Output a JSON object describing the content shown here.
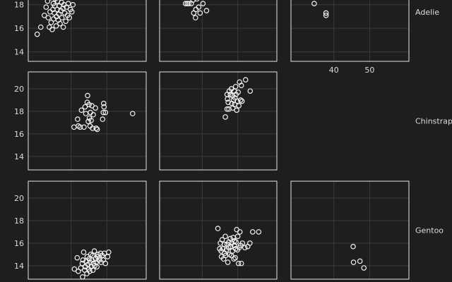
{
  "chart_data": {
    "type": "scatter",
    "layout": "faceted grid",
    "row_facet_labels": [
      "Adelie",
      "Chinstrap",
      "Gentoo"
    ],
    "x_tick_labels": [
      "40",
      "50"
    ],
    "x_ticks": [
      40,
      50
    ],
    "xlim": [
      28,
      61
    ],
    "y_ticks": [
      14,
      16,
      18,
      20
    ],
    "ylim_rows": [
      [
        13.2,
        19.0
      ],
      [
        12.8,
        21.5
      ],
      [
        12.8,
        21.5
      ]
    ],
    "grid": true,
    "marker": "hollow circle",
    "colors": {
      "background": "#1e1e1e",
      "frame": "#e6e6e6",
      "grid": "#3a3a3a",
      "point": "#f2f2f2",
      "text": "#dcdcdc"
    },
    "panels": [
      {
        "name": "adelie-col1",
        "row": 0,
        "col": 0,
        "points": [
          [
            30.5,
            15.5
          ],
          [
            31.5,
            16.1
          ],
          [
            32.5,
            17.1
          ],
          [
            33,
            17.8
          ],
          [
            33.4,
            18.3
          ],
          [
            33.6,
            16.9
          ],
          [
            33.9,
            16.1
          ],
          [
            34.1,
            17.4
          ],
          [
            34.3,
            18.6
          ],
          [
            34.4,
            16.5
          ],
          [
            34.7,
            15.9
          ],
          [
            34.9,
            17.6
          ],
          [
            35.0,
            18.1
          ],
          [
            35.1,
            16.8
          ],
          [
            35.3,
            17.3
          ],
          [
            35.4,
            17.9
          ],
          [
            35.6,
            18.5
          ],
          [
            35.8,
            16.2
          ],
          [
            35.9,
            17.0
          ],
          [
            36.1,
            17.6
          ],
          [
            36.2,
            18.3
          ],
          [
            36.4,
            16.7
          ],
          [
            36.6,
            17.2
          ],
          [
            36.7,
            17.9
          ],
          [
            36.9,
            16.4
          ],
          [
            37.1,
            17.5
          ],
          [
            37.3,
            18.2
          ],
          [
            37.4,
            16.9
          ],
          [
            37.7,
            17.7
          ],
          [
            37.8,
            16.1
          ],
          [
            38.0,
            18.0
          ],
          [
            38.2,
            17.3
          ],
          [
            38.5,
            16.6
          ],
          [
            38.7,
            17.8
          ],
          [
            39.0,
            17.1
          ],
          [
            39.2,
            18.1
          ],
          [
            39.5,
            16.9
          ],
          [
            39.8,
            17.6
          ],
          [
            40.2,
            17.4
          ],
          [
            40.5,
            18.0
          ]
        ]
      },
      {
        "name": "adelie-col2",
        "row": 0,
        "col": 1,
        "points": [
          [
            35.3,
            18.1
          ],
          [
            35.8,
            18.1
          ],
          [
            36.2,
            18.1
          ],
          [
            36.9,
            18.1
          ],
          [
            37.4,
            18.4
          ],
          [
            37.6,
            17.3
          ],
          [
            38.1,
            16.9
          ],
          [
            38.2,
            17.6
          ],
          [
            38.5,
            18.5
          ],
          [
            39.0,
            17.8
          ],
          [
            39.4,
            17.3
          ],
          [
            40.2,
            18.1
          ],
          [
            41.2,
            17.5
          ]
        ]
      },
      {
        "name": "adelie-col3",
        "row": 0,
        "col": 2,
        "points": [
          [
            34.5,
            18.1
          ],
          [
            37.8,
            17.3
          ],
          [
            37.8,
            17.1
          ]
        ]
      },
      {
        "name": "chinstrap-col1",
        "row": 1,
        "col": 0,
        "points": [
          [
            40.8,
            16.6
          ],
          [
            41.8,
            17.3
          ],
          [
            42.0,
            16.7
          ],
          [
            42.5,
            16.6
          ],
          [
            42.9,
            18.1
          ],
          [
            43.6,
            16.6
          ],
          [
            43.9,
            18.4
          ],
          [
            44.1,
            17.8
          ],
          [
            44.5,
            18.8
          ],
          [
            44.6,
            19.4
          ],
          [
            44.8,
            17.1
          ],
          [
            45.0,
            18.6
          ],
          [
            45.1,
            17.4
          ],
          [
            45.3,
            16.7
          ],
          [
            45.4,
            17.9
          ],
          [
            45.6,
            17.2
          ],
          [
            45.8,
            18.5
          ],
          [
            46.0,
            16.5
          ],
          [
            46.2,
            17.7
          ],
          [
            46.8,
            18.3
          ],
          [
            47.0,
            16.5
          ],
          [
            47.3,
            16.4
          ],
          [
            48.8,
            17.3
          ],
          [
            49.0,
            17.9
          ],
          [
            49.1,
            18.7
          ],
          [
            49.2,
            18.4
          ],
          [
            49.6,
            17.9
          ],
          [
            57.2,
            17.8
          ]
        ]
      },
      {
        "name": "chinstrap-col2",
        "row": 1,
        "col": 1,
        "points": [
          [
            46.5,
            17.5
          ],
          [
            47.0,
            18.2
          ],
          [
            47.0,
            19.5
          ],
          [
            47.1,
            19.1
          ],
          [
            47.3,
            18.8
          ],
          [
            47.5,
            18.2
          ],
          [
            47.6,
            19.8
          ],
          [
            47.9,
            19.5
          ],
          [
            48.2,
            20.0
          ],
          [
            48.3,
            18.7
          ],
          [
            48.5,
            19.4
          ],
          [
            48.6,
            18.3
          ],
          [
            48.8,
            19.0
          ],
          [
            49.0,
            19.8
          ],
          [
            49.1,
            18.6
          ],
          [
            49.2,
            19.2
          ],
          [
            49.4,
            20.2
          ],
          [
            49.5,
            19.5
          ],
          [
            49.7,
            18.1
          ],
          [
            49.9,
            18.9
          ],
          [
            50.1,
            19.7
          ],
          [
            50.3,
            18.5
          ],
          [
            50.5,
            20.6
          ],
          [
            50.8,
            19.0
          ],
          [
            51.0,
            20.3
          ],
          [
            51.2,
            18.9
          ],
          [
            52.2,
            20.8
          ],
          [
            53.5,
            19.8
          ]
        ]
      },
      {
        "name": "gentoo-col1",
        "row": 2,
        "col": 0,
        "points": [
          [
            40.9,
            13.7
          ],
          [
            41.7,
            14.7
          ],
          [
            42.0,
            13.5
          ],
          [
            42.7,
            13.8
          ],
          [
            43.1,
            14.2
          ],
          [
            43.2,
            13.0
          ],
          [
            43.3,
            14.5
          ],
          [
            43.5,
            15.2
          ],
          [
            43.8,
            13.6
          ],
          [
            44.0,
            13.9
          ],
          [
            44.2,
            14.4
          ],
          [
            44.4,
            13.3
          ],
          [
            44.5,
            14.8
          ],
          [
            44.7,
            14.1
          ],
          [
            44.9,
            13.7
          ],
          [
            45.0,
            14.6
          ],
          [
            45.2,
            13.5
          ],
          [
            45.3,
            14.3
          ],
          [
            45.5,
            15.0
          ],
          [
            45.6,
            13.9
          ],
          [
            45.8,
            14.5
          ],
          [
            46.0,
            14.9
          ],
          [
            46.1,
            13.6
          ],
          [
            46.3,
            14.2
          ],
          [
            46.5,
            15.3
          ],
          [
            46.6,
            14.0
          ],
          [
            46.8,
            14.6
          ],
          [
            47.0,
            14.3
          ],
          [
            47.2,
            13.9
          ],
          [
            47.4,
            14.8
          ],
          [
            47.5,
            15.0
          ],
          [
            47.8,
            14.5
          ],
          [
            48.0,
            14.7
          ],
          [
            48.2,
            15.1
          ],
          [
            48.4,
            14.3
          ],
          [
            48.7,
            14.9
          ],
          [
            49.0,
            14.5
          ],
          [
            49.3,
            15.1
          ],
          [
            49.6,
            14.2
          ],
          [
            50.2,
            14.8
          ],
          [
            50.5,
            15.2
          ]
        ]
      },
      {
        "name": "gentoo-col2",
        "row": 2,
        "col": 1,
        "points": [
          [
            44.4,
            17.3
          ],
          [
            44.9,
            15.5
          ],
          [
            45.1,
            16.0
          ],
          [
            45.3,
            15.3
          ],
          [
            45.4,
            14.8
          ],
          [
            45.6,
            16.3
          ],
          [
            45.8,
            15.5
          ],
          [
            46.0,
            14.6
          ],
          [
            46.2,
            15.9
          ],
          [
            46.3,
            15.1
          ],
          [
            46.5,
            16.6
          ],
          [
            46.6,
            14.9
          ],
          [
            46.8,
            15.4
          ],
          [
            47.0,
            15.9
          ],
          [
            47.2,
            14.3
          ],
          [
            47.4,
            15.6
          ],
          [
            47.5,
            16.1
          ],
          [
            47.7,
            15.0
          ],
          [
            47.9,
            16.4
          ],
          [
            48.0,
            15.7
          ],
          [
            48.2,
            14.9
          ],
          [
            48.3,
            16.0
          ],
          [
            48.5,
            15.3
          ],
          [
            48.7,
            16.5
          ],
          [
            48.9,
            14.6
          ],
          [
            49.0,
            15.8
          ],
          [
            49.1,
            16.2
          ],
          [
            49.3,
            14.7
          ],
          [
            49.4,
            15.5
          ],
          [
            49.5,
            16.1
          ],
          [
            49.7,
            17.2
          ],
          [
            49.9,
            15.4
          ],
          [
            50.0,
            16.6
          ],
          [
            50.2,
            14.2
          ],
          [
            50.4,
            15.6
          ],
          [
            50.6,
            17.0
          ],
          [
            50.8,
            15.8
          ],
          [
            51.0,
            14.2
          ],
          [
            51.3,
            16.0
          ],
          [
            52.0,
            15.6
          ],
          [
            52.8,
            15.7
          ],
          [
            53.4,
            16.0
          ],
          [
            54.2,
            17.0
          ],
          [
            55.9,
            17.0
          ]
        ]
      },
      {
        "name": "gentoo-col3",
        "row": 2,
        "col": 2,
        "points": [
          [
            45.4,
            15.7
          ],
          [
            45.5,
            14.3
          ],
          [
            47.3,
            14.4
          ],
          [
            48.4,
            13.8
          ]
        ]
      }
    ]
  }
}
